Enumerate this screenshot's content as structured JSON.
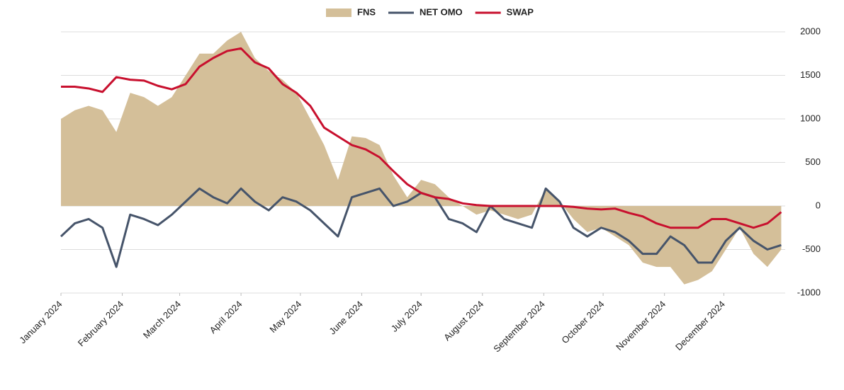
{
  "chart_data": {
    "type": "line",
    "x": [
      0,
      7,
      14,
      21,
      28,
      35,
      42,
      49,
      56,
      63,
      70,
      77,
      84,
      91,
      98,
      105,
      112,
      119,
      126,
      133,
      140,
      147,
      154,
      161,
      168,
      175,
      182,
      189,
      196,
      203,
      210,
      217,
      224,
      231,
      238,
      245,
      252,
      259,
      266,
      273,
      280,
      287,
      294,
      301,
      308,
      315,
      322,
      329,
      336,
      343,
      350,
      357,
      364
    ],
    "series": [
      {
        "name": "FNS",
        "kind": "area",
        "color": "#d4bf99",
        "values": [
          1000,
          1100,
          1150,
          1100,
          850,
          1300,
          1250,
          1150,
          1250,
          1500,
          1750,
          1750,
          1900,
          2000,
          1700,
          1550,
          1450,
          1300,
          1000,
          700,
          300,
          800,
          780,
          700,
          350,
          100,
          300,
          250,
          100,
          0,
          -100,
          -50,
          -100,
          -150,
          -100,
          200,
          50,
          -150,
          -300,
          -250,
          -350,
          -450,
          -650,
          -700,
          -700,
          -900,
          -850,
          -750,
          -500,
          -250,
          -550,
          -700,
          -500
        ]
      },
      {
        "name": "NET OMO",
        "kind": "line",
        "color": "#46546a",
        "values": [
          -350,
          -200,
          -150,
          -250,
          -700,
          -100,
          -150,
          -220,
          -100,
          50,
          200,
          100,
          30,
          200,
          50,
          -50,
          100,
          50,
          -50,
          -200,
          -350,
          100,
          150,
          200,
          0,
          50,
          150,
          100,
          -150,
          -200,
          -300,
          0,
          -150,
          -200,
          -250,
          200,
          50,
          -250,
          -350,
          -250,
          -300,
          -400,
          -550,
          -550,
          -350,
          -450,
          -650,
          -650,
          -400,
          -250,
          -400,
          -500,
          -450
        ]
      },
      {
        "name": "SWAP",
        "kind": "line",
        "color": "#c8102e",
        "values": [
          1370,
          1370,
          1350,
          1310,
          1480,
          1450,
          1440,
          1380,
          1340,
          1400,
          1600,
          1700,
          1780,
          1810,
          1650,
          1580,
          1400,
          1300,
          1150,
          900,
          800,
          700,
          650,
          560,
          400,
          250,
          150,
          100,
          80,
          30,
          10,
          0,
          0,
          0,
          0,
          0,
          0,
          -10,
          -30,
          -40,
          -30,
          -80,
          -120,
          -200,
          -250,
          -250,
          -250,
          -150,
          -150,
          -200,
          -250,
          -200,
          -70
        ]
      }
    ],
    "xlim": [
      0,
      366
    ],
    "xticks": [
      {
        "value": 0,
        "label": "January 2024"
      },
      {
        "value": 31,
        "label": "February 2024"
      },
      {
        "value": 60,
        "label": "March 2024"
      },
      {
        "value": 91,
        "label": "April 2024"
      },
      {
        "value": 121,
        "label": "May 2024"
      },
      {
        "value": 152,
        "label": "June 2024"
      },
      {
        "value": 182,
        "label": "July 2024"
      },
      {
        "value": 213,
        "label": "August 2024"
      },
      {
        "value": 244,
        "label": "September 2024"
      },
      {
        "value": 274,
        "label": "October 2024"
      },
      {
        "value": 305,
        "label": "November 2024"
      },
      {
        "value": 335,
        "label": "December 2024"
      }
    ],
    "ylim": [
      -1000,
      2000
    ],
    "yticks": [
      2000,
      1500,
      1000,
      500,
      0,
      -500,
      -1000
    ],
    "grid": true,
    "legend": "top"
  }
}
